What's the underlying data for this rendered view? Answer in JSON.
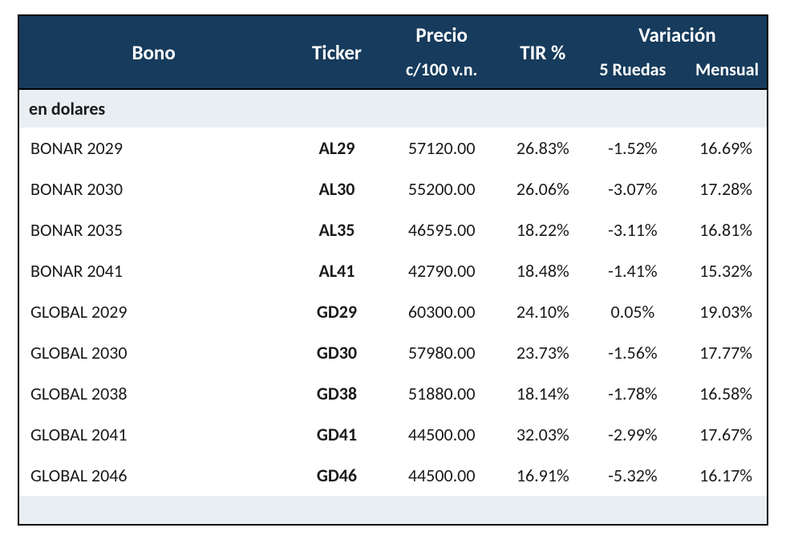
{
  "table": {
    "type": "table",
    "header_bg": "#163b5c",
    "header_fg": "#ffffff",
    "border_color": "#000000",
    "row_bg": "#ffffff",
    "section_bg": "#e9eef2",
    "text_color": "#1a1a1a",
    "font_family": "Calibri",
    "header_fontsize": 25,
    "subheader_fontsize": 22,
    "cell_fontsize": 22,
    "columns": {
      "bono": {
        "label": "Bono",
        "align": "center",
        "width_pct": 36
      },
      "ticker": {
        "label": "Ticker",
        "align": "center",
        "width_pct": 13,
        "bold": true
      },
      "precio": {
        "label_top": "Precio",
        "label_bottom": "c/100 v.n.",
        "align": "center",
        "width_pct": 15
      },
      "tir": {
        "label": "TIR %",
        "align": "center",
        "width_pct": 12
      },
      "variacion": {
        "label": "Variación",
        "sub": {
          "r5": {
            "label": "5 Ruedas",
            "align": "center",
            "width_pct": 12
          },
          "men": {
            "label": "Mensual",
            "align": "right",
            "width_pct": 12
          }
        }
      }
    },
    "section_label": "en dolares",
    "rows": [
      {
        "bono": "BONAR 2029",
        "ticker": "AL29",
        "precio": "57120.00",
        "tir": "26.83%",
        "r5": "-1.52%",
        "men": "16.69%"
      },
      {
        "bono": "BONAR 2030",
        "ticker": "AL30",
        "precio": "55200.00",
        "tir": "26.06%",
        "r5": "-3.07%",
        "men": "17.28%"
      },
      {
        "bono": "BONAR 2035",
        "ticker": "AL35",
        "precio": "46595.00",
        "tir": "18.22%",
        "r5": "-3.11%",
        "men": "16.81%"
      },
      {
        "bono": "BONAR 2041",
        "ticker": "AL41",
        "precio": "42790.00",
        "tir": "18.48%",
        "r5": "-1.41%",
        "men": "15.32%"
      },
      {
        "bono": "GLOBAL 2029",
        "ticker": "GD29",
        "precio": "60300.00",
        "tir": "24.10%",
        "r5": "0.05%",
        "men": "19.03%"
      },
      {
        "bono": "GLOBAL 2030",
        "ticker": "GD30",
        "precio": "57980.00",
        "tir": "23.73%",
        "r5": "-1.56%",
        "men": "17.77%"
      },
      {
        "bono": "GLOBAL 2038",
        "ticker": "GD38",
        "precio": "51880.00",
        "tir": "18.14%",
        "r5": "-1.78%",
        "men": "16.58%"
      },
      {
        "bono": "GLOBAL 2041",
        "ticker": "GD41",
        "precio": "44500.00",
        "tir": "32.03%",
        "r5": "-2.99%",
        "men": "17.67%"
      },
      {
        "bono": "GLOBAL 2046",
        "ticker": "GD46",
        "precio": "44500.00",
        "tir": "16.91%",
        "r5": "-5.32%",
        "men": "16.17%"
      }
    ]
  }
}
